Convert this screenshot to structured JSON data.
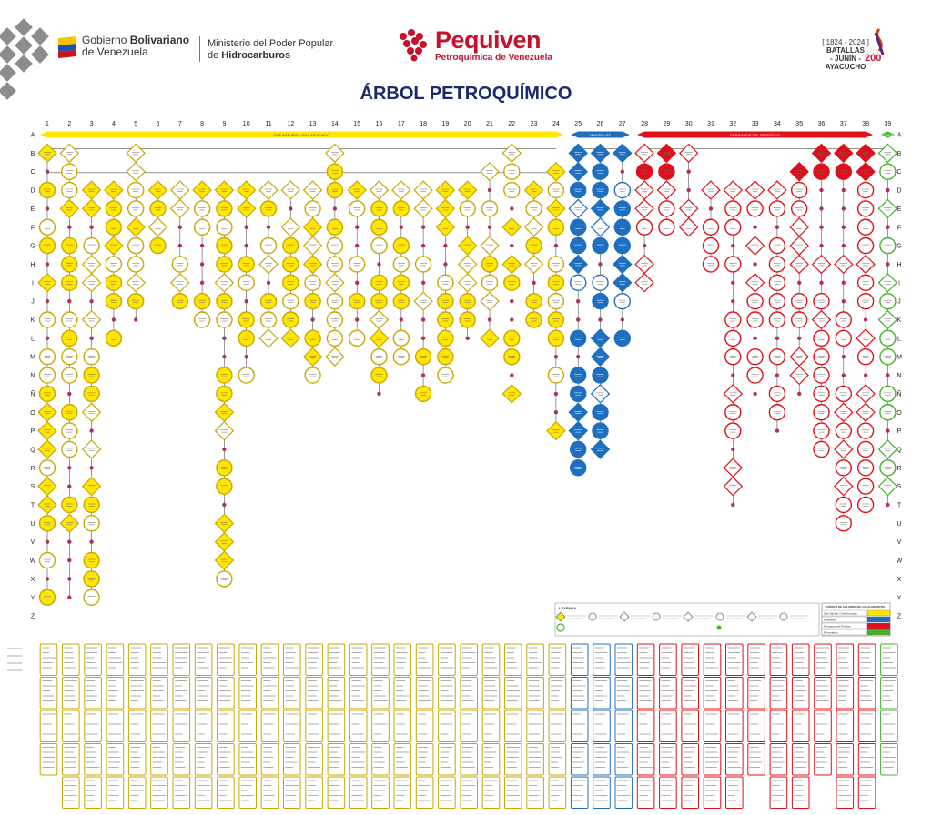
{
  "header": {
    "gov_line1_a": "Gobierno ",
    "gov_line1_b": "Bolivariano",
    "gov_line2": "de Venezuela",
    "ministry_line1": "Ministerio del Poder Popular",
    "ministry_line2": "de ",
    "ministry_line2_b": "Hidrocarburos",
    "brand_name": "Pequiven",
    "brand_sub": "Petroquímica de Venezuela",
    "battle_years": "[ 1824 - 2024 ]",
    "battle_label1": "BATALLAS",
    "battle_label2": "- JUNÍN -",
    "battle_label3": "AYACUCHO",
    "battle_anniv": "200"
  },
  "title": "ÁRBOL PETROQUÍMICO",
  "columns": [
    "1",
    "2",
    "3",
    "4",
    "5",
    "6",
    "7",
    "8",
    "9",
    "10",
    "11",
    "12",
    "13",
    "14",
    "15",
    "16",
    "17",
    "18",
    "19",
    "20",
    "21",
    "22",
    "23",
    "24",
    "25",
    "26",
    "27",
    "28",
    "29",
    "30",
    "31",
    "32",
    "33",
    "34",
    "35",
    "36",
    "37",
    "38",
    "39"
  ],
  "rows": [
    "A",
    "B",
    "C",
    "D",
    "E",
    "F",
    "G",
    "H",
    "I",
    "J",
    "K",
    "L",
    "M",
    "N",
    "Ñ",
    "O",
    "P",
    "Q",
    "R",
    "S",
    "T",
    "U",
    "V",
    "W",
    "X",
    "Y",
    "Z"
  ],
  "bands": [
    {
      "label": "GAS NATURAL / GAS ASOCIADO",
      "color": "#ffe600"
    },
    {
      "label": "MINERALES",
      "color": "#1f6fc0"
    },
    {
      "label": "DERIVADOS DEL PETRÓLEO",
      "color": "#e0101a"
    },
    {
      "label": "RENOVABLES",
      "color": "#44b02a"
    }
  ],
  "legend": {
    "title": "LEYENDA",
    "color_table_title": "CÓDIGO DE COLORES DE LOS ELEMENTOS",
    "color_table": [
      {
        "label": "Gas Natural / Gas Asociado",
        "color": "#ffe600"
      },
      {
        "label": "Minerales",
        "color": "#1f6fc0"
      },
      {
        "label": "Derivados del Petróleo",
        "color": "#e0101a"
      },
      {
        "label": "Renovables",
        "color": "#44b02a"
      }
    ]
  },
  "colors": {
    "gas": "#ffe600",
    "gas_stroke": "#c8a800",
    "mineral": "#1f6fc0",
    "petroleo": "#e0101a",
    "renovable": "#44b02a",
    "title": "#1a2a6c",
    "brand": "#c8102e"
  }
}
